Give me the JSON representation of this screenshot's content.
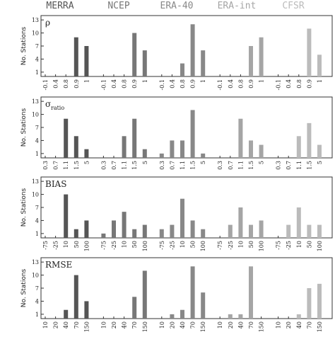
{
  "chart_data": [
    {
      "type": "bar",
      "title": "ρ",
      "ylabel": "No. Stations",
      "categories": [
        "-0.1",
        "0.4",
        "0.8",
        "0.9",
        "1"
      ],
      "series": [
        {
          "name": "MERRA",
          "color": "#555555",
          "values": [
            0,
            0,
            0,
            9,
            7
          ]
        },
        {
          "name": "NCEP",
          "color": "#777777",
          "values": [
            0,
            0,
            0,
            10,
            6
          ]
        },
        {
          "name": "ERA-40",
          "color": "#888888",
          "values": [
            0,
            0,
            3,
            12,
            6
          ]
        },
        {
          "name": "ERA-int",
          "color": "#a5a5a5",
          "values": [
            0,
            0,
            0,
            7,
            9
          ]
        },
        {
          "name": "CFSR",
          "color": "#bbbbbb",
          "values": [
            0,
            0,
            0,
            11,
            5
          ]
        }
      ],
      "ylim": [
        0,
        14
      ],
      "yticks": [
        1,
        4,
        7,
        10,
        13
      ]
    },
    {
      "type": "bar",
      "title": "σ",
      "title_subscript": "ratio",
      "ylabel": "No. Stations",
      "categories": [
        "0.3",
        "0.7",
        "1.1",
        "1.5",
        "5"
      ],
      "series": [
        {
          "name": "MERRA",
          "color": "#555555",
          "values": [
            0,
            0,
            9,
            5,
            2
          ]
        },
        {
          "name": "NCEP",
          "color": "#777777",
          "values": [
            0,
            0,
            5,
            9,
            2
          ]
        },
        {
          "name": "ERA-40",
          "color": "#888888",
          "values": [
            1,
            4,
            4,
            11,
            1
          ]
        },
        {
          "name": "ERA-int",
          "color": "#a5a5a5",
          "values": [
            0,
            0,
            9,
            4,
            3
          ]
        },
        {
          "name": "CFSR",
          "color": "#bbbbbb",
          "values": [
            0,
            0,
            5,
            8,
            3
          ]
        }
      ],
      "ylim": [
        0,
        14
      ],
      "yticks": [
        1,
        4,
        7,
        10,
        13
      ]
    },
    {
      "type": "bar",
      "title": "BIAS",
      "ylabel": "No. Stations",
      "categories": [
        "-75",
        "-25",
        "10",
        "50",
        "100"
      ],
      "series": [
        {
          "name": "MERRA",
          "color": "#555555",
          "values": [
            0,
            0,
            10,
            2,
            4
          ]
        },
        {
          "name": "NCEP",
          "color": "#777777",
          "values": [
            1,
            4,
            6,
            2,
            3
          ]
        },
        {
          "name": "ERA-40",
          "color": "#888888",
          "values": [
            2,
            3,
            9,
            4,
            2
          ]
        },
        {
          "name": "ERA-int",
          "color": "#a5a5a5",
          "values": [
            0,
            3,
            7,
            3,
            4
          ]
        },
        {
          "name": "CFSR",
          "color": "#bbbbbb",
          "values": [
            0,
            3,
            7,
            3,
            3
          ]
        }
      ],
      "ylim": [
        0,
        14
      ],
      "yticks": [
        1,
        4,
        7,
        10,
        13
      ]
    },
    {
      "type": "bar",
      "title": "RMSE",
      "ylabel": "No. Stations",
      "categories": [
        "10",
        "20",
        "40",
        "70",
        "150"
      ],
      "series": [
        {
          "name": "MERRA",
          "color": "#555555",
          "values": [
            0,
            0,
            2,
            10,
            4
          ]
        },
        {
          "name": "NCEP",
          "color": "#777777",
          "values": [
            0,
            0,
            0,
            5,
            11
          ]
        },
        {
          "name": "ERA-40",
          "color": "#888888",
          "values": [
            0,
            1,
            2,
            12,
            6
          ]
        },
        {
          "name": "ERA-int",
          "color": "#a5a5a5",
          "values": [
            0,
            1,
            1,
            12,
            0
          ]
        },
        {
          "name": "CFSR",
          "color": "#bbbbbb",
          "values": [
            0,
            0,
            1,
            7,
            8
          ]
        }
      ],
      "ylim": [
        0,
        14
      ],
      "yticks": [
        1,
        4,
        7,
        10,
        13
      ]
    }
  ]
}
